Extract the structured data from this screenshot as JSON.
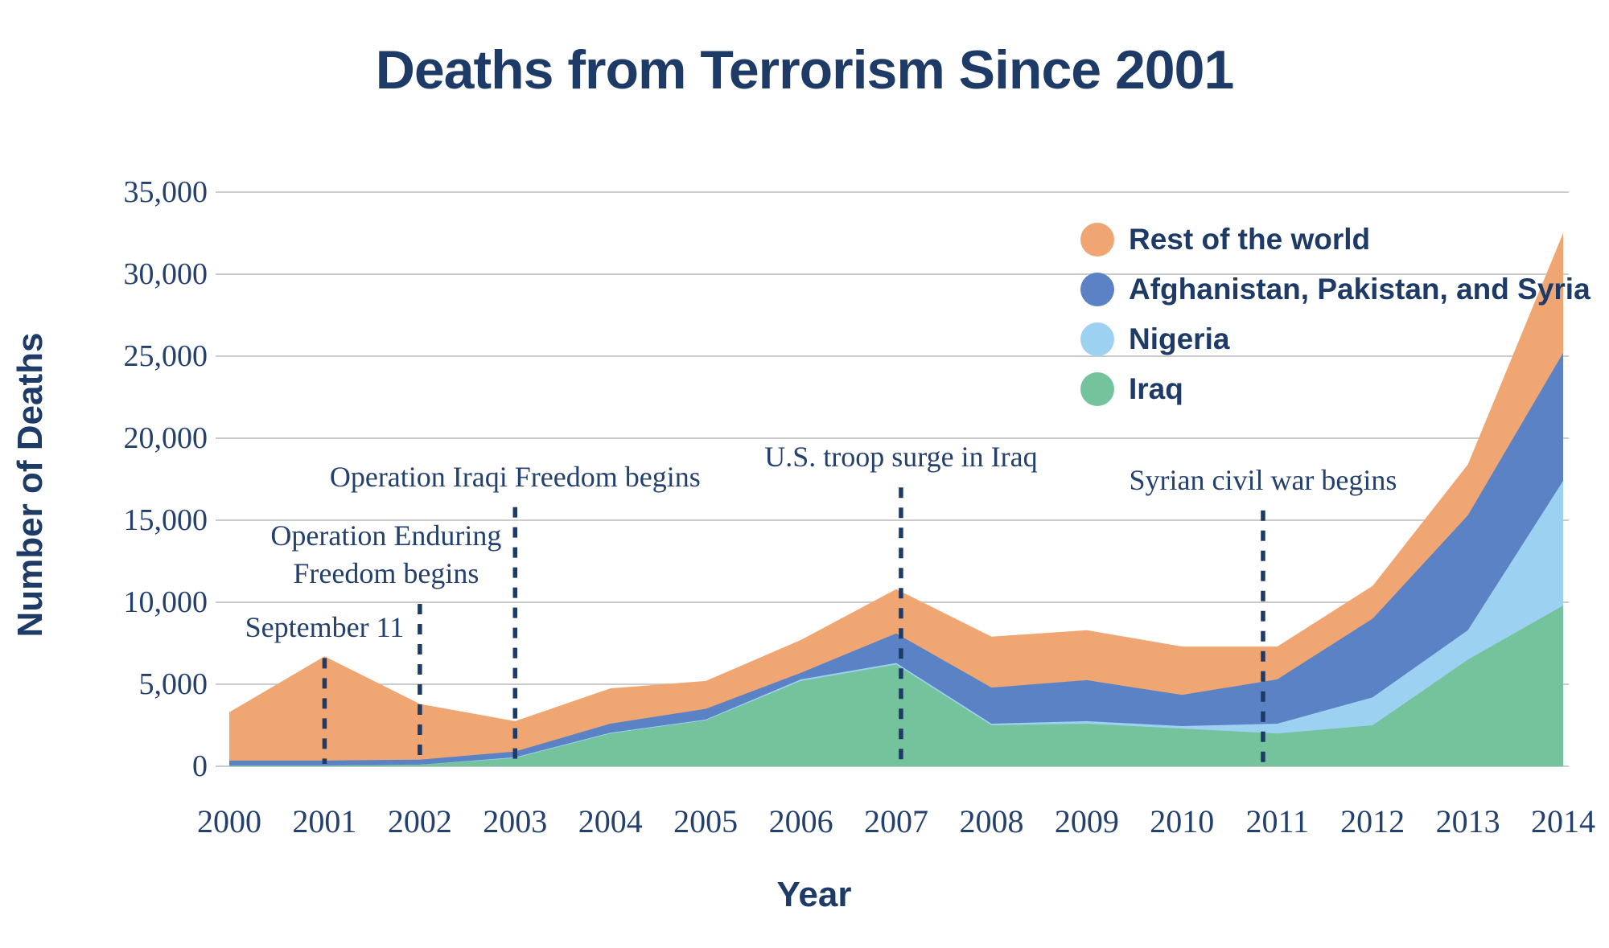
{
  "title": "Deaths from Terrorism Since 2001",
  "y_axis": {
    "title": "Number of Deaths",
    "ticks": [
      "0",
      "5,000",
      "10,000",
      "15,000",
      "20,000",
      "25,000",
      "30,000",
      "35,000"
    ],
    "tick_values": [
      0,
      5000,
      10000,
      15000,
      20000,
      25000,
      30000,
      35000
    ]
  },
  "x_axis": {
    "title": "Year",
    "ticks": [
      "2000",
      "2001",
      "2002",
      "2003",
      "2004",
      "2005",
      "2006",
      "2007",
      "2008",
      "2009",
      "2010",
      "2011",
      "2012",
      "2013",
      "2014"
    ]
  },
  "legend": [
    {
      "label": "Rest of the world",
      "color": "#efa673"
    },
    {
      "label": "Afghanistan, Pakistan, and Syria",
      "color": "#5a82c4"
    },
    {
      "label": "Nigeria",
      "color": "#9dd1f1"
    },
    {
      "label": "Iraq",
      "color": "#74c39c"
    }
  ],
  "annotations": [
    {
      "id": "september-11",
      "lines": [
        "September 11"
      ],
      "year": 2001,
      "line_top_value": 6600,
      "text_dx": 0
    },
    {
      "id": "operation-enduring-freedom",
      "lines": [
        "Operation Enduring",
        "Freedom begins"
      ],
      "year": 2002,
      "line_top_value": 9900,
      "text_dx": -42
    },
    {
      "id": "operation-iraqi-freedom",
      "lines": [
        "Operation Iraqi Freedom begins"
      ],
      "year": 2003,
      "line_top_value": 15800,
      "text_dx": 0
    },
    {
      "id": "us-troop-surge",
      "lines": [
        "U.S. troop surge in Iraq"
      ],
      "year": 2007.05,
      "line_top_value": 17000,
      "text_dx": 0
    },
    {
      "id": "syrian-civil-war",
      "lines": [
        "Syrian civil war begins"
      ],
      "year": 2010.85,
      "line_top_value": 15600,
      "text_dx": 0
    }
  ],
  "colors": {
    "navy": "#1e3a66",
    "serif_text": "#24406e",
    "gridline": "#cbcbcb",
    "background": "#ffffff"
  },
  "chart_data": {
    "type": "area",
    "stacked": true,
    "title": "Deaths from Terrorism Since 2001",
    "xlabel": "Year",
    "ylabel": "Number of Deaths",
    "x": [
      2000,
      2001,
      2002,
      2003,
      2004,
      2005,
      2006,
      2007,
      2008,
      2009,
      2010,
      2011,
      2012,
      2013,
      2014
    ],
    "series": [
      {
        "name": "Iraq",
        "color": "#74c39c",
        "values": [
          50,
          50,
          100,
          500,
          2000,
          2800,
          5200,
          6200,
          2500,
          2600,
          2300,
          2000,
          2500,
          6500,
          9800
        ]
      },
      {
        "name": "Nigeria",
        "color": "#9dd1f1",
        "values": [
          0,
          0,
          0,
          50,
          50,
          50,
          100,
          100,
          100,
          150,
          150,
          600,
          1700,
          1800,
          7600
        ]
      },
      {
        "name": "Afghanistan, Pakistan, and Syria",
        "color": "#5a82c4",
        "values": [
          300,
          300,
          300,
          350,
          550,
          650,
          400,
          1800,
          2200,
          2500,
          1900,
          2700,
          4800,
          7000,
          7800
        ]
      },
      {
        "name": "Rest of the world",
        "color": "#efa673",
        "values": [
          2950,
          6350,
          3400,
          1850,
          2150,
          1700,
          2000,
          2700,
          3100,
          3050,
          2950,
          2000,
          2000,
          3100,
          7300
        ]
      }
    ],
    "totals": [
      3300,
      6700,
      3800,
      2750,
      4750,
      5200,
      7700,
      10800,
      7900,
      8300,
      7300,
      7300,
      11000,
      18400,
      32500
    ],
    "ylim": [
      0,
      35000
    ],
    "grid": true,
    "legend_position": "top-right"
  }
}
